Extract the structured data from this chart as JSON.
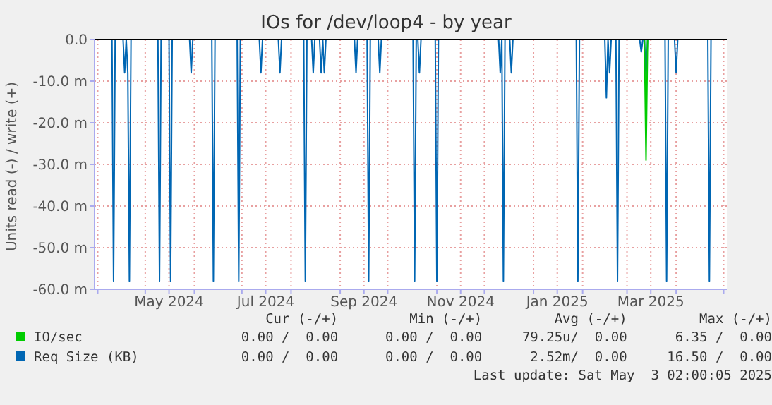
{
  "chart_data": {
    "type": "line",
    "title": "IOs for /dev/loop4 - by year",
    "ylabel": "Units read (-) / write (+)",
    "xlim": [
      "2024-03-30",
      "2025-05-03"
    ],
    "xticks": [
      {
        "value": "2024-04-01",
        "label": null
      },
      {
        "value": "2024-05-01",
        "label": null
      },
      {
        "value": "2024-05-16",
        "label": "May 2024"
      },
      {
        "value": "2024-06-01",
        "label": null
      },
      {
        "value": "2024-07-01",
        "label": null
      },
      {
        "value": "2024-07-16",
        "label": "Jul 2024"
      },
      {
        "value": "2024-08-01",
        "label": null
      },
      {
        "value": "2024-09-01",
        "label": null
      },
      {
        "value": "2024-09-16",
        "label": "Sep 2024"
      },
      {
        "value": "2024-10-01",
        "label": null
      },
      {
        "value": "2024-11-01",
        "label": null
      },
      {
        "value": "2024-11-16",
        "label": "Nov 2024"
      },
      {
        "value": "2024-12-01",
        "label": null
      },
      {
        "value": "2025-01-01",
        "label": null
      },
      {
        "value": "2025-01-16",
        "label": "Jan 2025"
      },
      {
        "value": "2025-02-01",
        "label": null
      },
      {
        "value": "2025-03-01",
        "label": null
      },
      {
        "value": "2025-03-16",
        "label": "Mar 2025"
      },
      {
        "value": "2025-04-01",
        "label": null
      },
      {
        "value": "2025-05-01",
        "label": null
      }
    ],
    "ylim": [
      -60,
      0
    ],
    "yticks": [
      {
        "value": -60,
        "label": "-60.0 m"
      },
      {
        "value": -50,
        "label": "-50.0 m"
      },
      {
        "value": -40,
        "label": "-40.0 m"
      },
      {
        "value": -30,
        "label": "-30.0 m"
      },
      {
        "value": -20,
        "label": "-20.0 m"
      },
      {
        "value": -10,
        "label": "-10.0 m"
      },
      {
        "value": 0,
        "label": "0.0"
      }
    ],
    "grid": true,
    "legend": "bottom",
    "ref_lines": [
      {
        "axis": "y",
        "value": 0,
        "color": "#000000"
      }
    ],
    "series": [
      {
        "name": "IO/sec",
        "color": "#00cc00",
        "x": [
          "2025-03-12",
          "2025-03-13",
          "2025-03-14"
        ],
        "values": [
          0,
          -29,
          0
        ]
      },
      {
        "name": "Req Size (KB)",
        "color": "#0066b3",
        "x": [
          "2024-03-30",
          "2024-04-10",
          "2024-04-11",
          "2024-04-12",
          "2024-04-17",
          "2024-04-18",
          "2024-04-19",
          "2024-04-20",
          "2024-04-21",
          "2024-04-22",
          "2024-05-09",
          "2024-05-10",
          "2024-05-11",
          "2024-05-16",
          "2024-05-17",
          "2024-05-18",
          "2024-05-29",
          "2024-05-30",
          "2024-05-31",
          "2024-06-12",
          "2024-06-13",
          "2024-06-14",
          "2024-06-28",
          "2024-06-29",
          "2024-06-30",
          "2024-07-12",
          "2024-07-13",
          "2024-07-14",
          "2024-07-24",
          "2024-07-25",
          "2024-07-26",
          "2024-08-09",
          "2024-08-10",
          "2024-08-11",
          "2024-08-14",
          "2024-08-15",
          "2024-08-16",
          "2024-08-19",
          "2024-08-20",
          "2024-08-21",
          "2024-08-22",
          "2024-08-23",
          "2024-09-10",
          "2024-09-11",
          "2024-09-12",
          "2024-09-18",
          "2024-09-19",
          "2024-09-20",
          "2024-09-25",
          "2024-09-26",
          "2024-09-27",
          "2024-10-17",
          "2024-10-18",
          "2024-10-19",
          "2024-10-20",
          "2024-10-21",
          "2024-10-22",
          "2024-10-31",
          "2024-11-01",
          "2024-11-02",
          "2024-12-10",
          "2024-12-11",
          "2024-12-12",
          "2024-12-13",
          "2024-12-14",
          "2024-12-15",
          "2024-12-17",
          "2024-12-18",
          "2024-12-19",
          "2025-01-28",
          "2025-01-29",
          "2025-01-30",
          "2025-02-15",
          "2025-02-16",
          "2025-02-17",
          "2025-02-18",
          "2025-02-19",
          "2025-02-22",
          "2025-02-23",
          "2025-02-24",
          "2025-03-09",
          "2025-03-10",
          "2025-03-11",
          "2025-03-12",
          "2025-03-13",
          "2025-03-14",
          "2025-03-25",
          "2025-03-26",
          "2025-03-27",
          "2025-03-31",
          "2025-04-01",
          "2025-04-02",
          "2025-04-21",
          "2025-04-22",
          "2025-04-23",
          "2025-05-03"
        ],
        "values": [
          0,
          0,
          -58,
          0,
          0,
          -8,
          0,
          -8,
          -58,
          0,
          0,
          -58,
          0,
          0,
          -58,
          0,
          0,
          -8,
          0,
          0,
          -58,
          0,
          0,
          -58,
          0,
          0,
          -8,
          0,
          0,
          -8,
          0,
          0,
          -58,
          0,
          0,
          -8,
          0,
          0,
          -8,
          0,
          -8,
          0,
          0,
          -8,
          0,
          0,
          -58,
          0,
          0,
          -8,
          0,
          0,
          -58,
          0,
          0,
          -8,
          0,
          0,
          -58,
          0,
          0,
          -8,
          0,
          -58,
          0,
          0,
          0,
          -8,
          0,
          0,
          -58,
          0,
          0,
          -14,
          0,
          -8,
          0,
          0,
          -58,
          0,
          0,
          -3,
          0,
          0,
          -9,
          0,
          0,
          -58,
          0,
          0,
          -8,
          0,
          0,
          -58,
          0,
          0
        ]
      }
    ],
    "annotations": [
      "Cur (-/+)",
      "Min (-/+)",
      "Avg (-/+)",
      "Max (-/+)",
      "0.00 /  0.00",
      "0.00 /  0.00",
      "79.25u/  0.00",
      "6.35 /  0.00",
      "0.00 /  0.00",
      "0.00 /  0.00",
      "2.52m/  0.00",
      "16.50 /  0.00",
      "Last update: Sat May  3 02:00:05 2025"
    ]
  }
}
